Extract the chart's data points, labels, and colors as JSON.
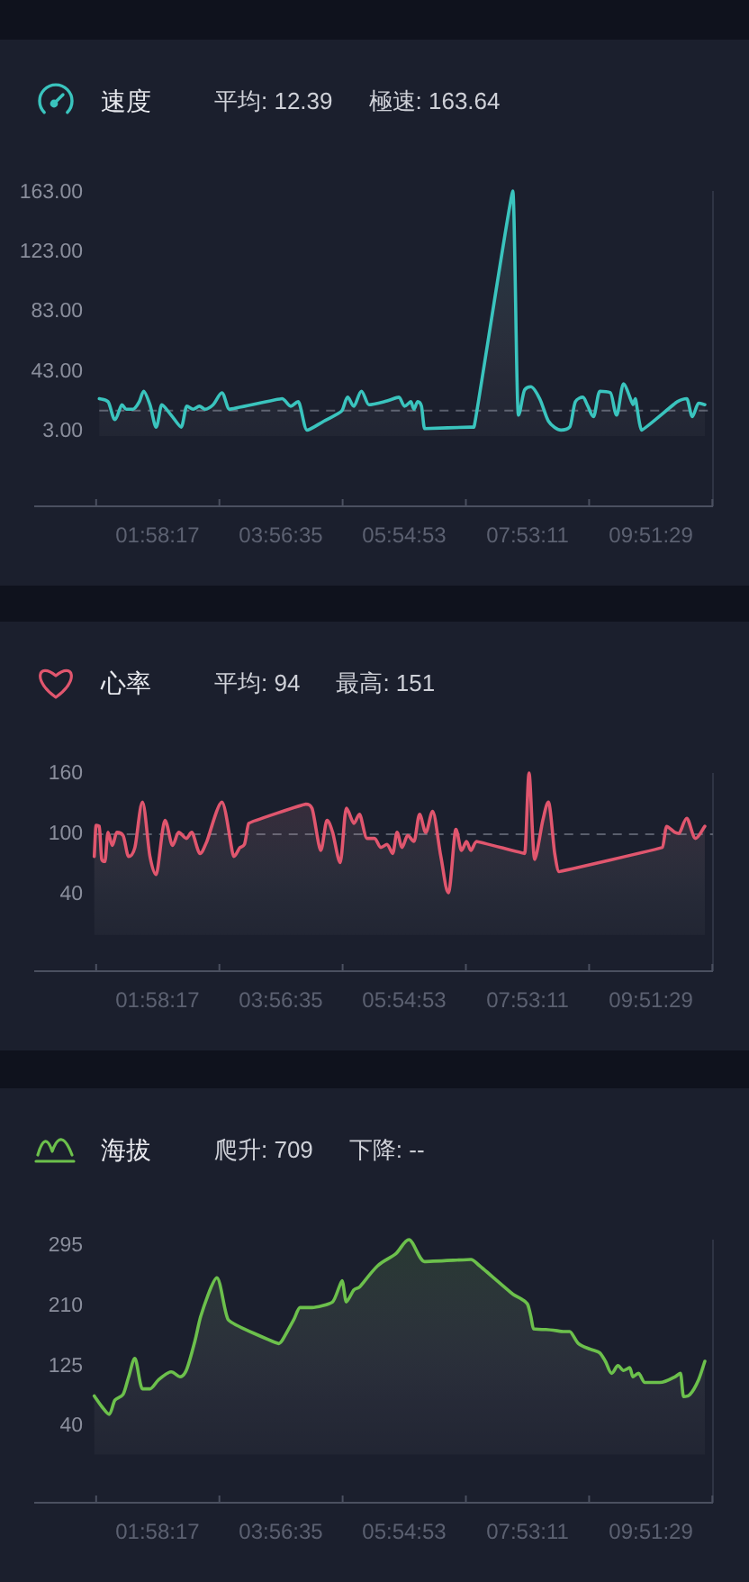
{
  "chart_data": [
    {
      "type": "area",
      "title": "速度",
      "annotations": [
        "平均: 12.39",
        "極速: 163.64"
      ],
      "color": "#3ac4be",
      "x": [
        1.04,
        1.18,
        1.29,
        1.4,
        1.47,
        1.58,
        1.68,
        1.75,
        1.85,
        1.95,
        2.04,
        2.19,
        2.35,
        2.44,
        2.54,
        2.64,
        2.73,
        2.86,
        3.0,
        3.12,
        3.96,
        4.1,
        4.22,
        4.36,
        4.63,
        4.92,
        5.01,
        5.11,
        5.23,
        5.35,
        5.59,
        5.83,
        5.92,
        6.02,
        6.07,
        6.13,
        6.19,
        6.24,
        6.98,
        7.03,
        7.65,
        7.74,
        7.84,
        7.94,
        8.08,
        8.22,
        8.42,
        8.56,
        8.65,
        8.77,
        8.85,
        8.94,
        9.04,
        9.21,
        9.31,
        9.42,
        9.57,
        9.61,
        9.71,
        10.28,
        10.43,
        10.52,
        10.62,
        10.72
      ],
      "values": [
        25,
        23,
        11,
        21,
        18,
        18,
        23,
        30,
        21,
        6,
        21,
        14,
        6,
        20,
        18,
        20,
        18,
        21,
        29,
        18,
        25,
        20,
        23,
        4,
        10,
        17,
        26,
        20,
        30,
        21,
        23,
        26,
        20,
        23,
        18,
        23,
        20,
        5,
        6,
        6,
        164,
        14,
        31,
        33,
        25,
        10,
        4,
        6,
        23,
        26,
        20,
        13,
        30,
        29,
        14,
        35,
        21,
        25,
        4,
        23,
        25,
        13,
        22,
        21
      ],
      "xlim": [
        0,
        10.85
      ],
      "ylim": [
        -47,
        164
      ],
      "xticks": [
        {
          "value": 0.99,
          "label": null
        },
        {
          "value": 1.9714,
          "label": "01:58:17"
        },
        {
          "value": 2.96,
          "label": null
        },
        {
          "value": 3.9431,
          "label": "03:56:35"
        },
        {
          "value": 4.93,
          "label": null
        },
        {
          "value": 5.9147,
          "label": "05:54:53"
        },
        {
          "value": 6.9,
          "label": null
        },
        {
          "value": 7.8864,
          "label": "07:53:11"
        },
        {
          "value": 8.87,
          "label": null
        },
        {
          "value": 9.8581,
          "label": "09:51:29"
        },
        {
          "value": 10.84,
          "label": null
        }
      ],
      "yticks": [
        {
          "value": 3,
          "label": "3.00"
        },
        {
          "value": 43,
          "label": "43.00"
        },
        {
          "value": 83,
          "label": "83.00"
        },
        {
          "value": 123,
          "label": "123.00"
        },
        {
          "value": 163,
          "label": "163.00"
        }
      ],
      "ref_lines": [
        {
          "axis": "y",
          "value": 17,
          "color": "#5a5f6d",
          "line_style": "dashed"
        }
      ]
    },
    {
      "type": "area",
      "title": "心率",
      "annotations": [
        "平均: 94",
        "最高: 151"
      ],
      "color": "#e0566e",
      "x": [
        0.96,
        0.99,
        1.04,
        1.08,
        1.13,
        1.18,
        1.25,
        1.32,
        1.42,
        1.51,
        1.61,
        1.73,
        1.85,
        1.95,
        2.09,
        2.21,
        2.31,
        2.43,
        2.52,
        2.65,
        2.76,
        3.0,
        3.19,
        3.29,
        3.36,
        3.43,
        4.34,
        4.44,
        4.58,
        4.68,
        4.77,
        4.89,
        4.99,
        5.11,
        5.2,
        5.32,
        5.44,
        5.54,
        5.64,
        5.73,
        5.8,
        5.88,
        5.97,
        6.07,
        6.16,
        6.26,
        6.37,
        6.5,
        6.62,
        6.74,
        6.83,
        6.91,
        6.98,
        7.07,
        7.84,
        7.91,
        8.0,
        8.13,
        8.22,
        8.32,
        8.39,
        10.04,
        10.11,
        10.24,
        10.31,
        10.43,
        10.57,
        10.72
      ],
      "values": [
        78,
        109,
        108,
        75,
        73,
        102,
        89,
        102,
        99,
        78,
        87,
        132,
        78,
        60,
        114,
        89,
        102,
        96,
        102,
        81,
        93,
        132,
        78,
        87,
        90,
        111,
        130,
        126,
        84,
        114,
        102,
        72,
        126,
        111,
        120,
        96,
        96,
        87,
        90,
        81,
        102,
        87,
        99,
        93,
        120,
        102,
        123,
        78,
        42,
        105,
        84,
        93,
        84,
        93,
        81,
        161,
        75,
        114,
        132,
        81,
        63,
        87,
        108,
        102,
        101,
        116,
        96,
        108
      ],
      "xlim": [
        0,
        10.85
      ],
      "ylim": [
        -36,
        161
      ],
      "xticks": [
        {
          "value": 0.99,
          "label": null
        },
        {
          "value": 1.9714,
          "label": "01:58:17"
        },
        {
          "value": 2.96,
          "label": null
        },
        {
          "value": 3.9431,
          "label": "03:56:35"
        },
        {
          "value": 4.93,
          "label": null
        },
        {
          "value": 5.9147,
          "label": "05:54:53"
        },
        {
          "value": 6.9,
          "label": null
        },
        {
          "value": 7.8864,
          "label": "07:53:11"
        },
        {
          "value": 8.87,
          "label": null
        },
        {
          "value": 9.8581,
          "label": "09:51:29"
        },
        {
          "value": 10.84,
          "label": null
        }
      ],
      "yticks": [
        40,
        100,
        160
      ],
      "ref_lines": [
        {
          "axis": "y",
          "value": 100,
          "color": "#5a5f6d",
          "line_style": "dashed"
        }
      ]
    },
    {
      "type": "area",
      "title": "海拔",
      "annotations": [
        "爬升: 709",
        "下降: --"
      ],
      "color": "#6cc04c",
      "x": [
        0.96,
        1.08,
        1.2,
        1.29,
        1.42,
        1.51,
        1.61,
        1.73,
        1.85,
        1.99,
        2.19,
        2.33,
        2.43,
        2.57,
        2.66,
        2.92,
        3.1,
        3.91,
        3.96,
        4.15,
        4.25,
        4.44,
        4.77,
        4.92,
        4.99,
        5.11,
        5.2,
        5.49,
        5.78,
        5.99,
        6.24,
        6.98,
        7.12,
        7.65,
        7.79,
        7.89,
        7.94,
        7.98,
        8.18,
        8.46,
        8.56,
        8.7,
        8.89,
        9.04,
        9.13,
        9.23,
        9.33,
        9.42,
        9.52,
        9.57,
        9.66,
        9.76,
        10.0,
        10.24,
        10.33,
        10.38,
        10.48,
        10.62,
        10.72
      ],
      "values": [
        83,
        68,
        57,
        77,
        85,
        110,
        136,
        93,
        93,
        106,
        117,
        110,
        119,
        161,
        195,
        250,
        191,
        157,
        161,
        191,
        208,
        208,
        216,
        246,
        216,
        233,
        237,
        267,
        284,
        304,
        273,
        276,
        267,
        227,
        220,
        212,
        195,
        178,
        177,
        174,
        174,
        157,
        149,
        144,
        132,
        115,
        126,
        119,
        123,
        110,
        115,
        102,
        102,
        110,
        115,
        82,
        85,
        106,
        132
      ],
      "xlim": [
        0,
        10.85
      ],
      "ylim": [
        -68,
        304
      ],
      "xticks": [
        {
          "value": 0.99,
          "label": null
        },
        {
          "value": 1.9714,
          "label": "01:58:17"
        },
        {
          "value": 2.96,
          "label": null
        },
        {
          "value": 3.9431,
          "label": "03:56:35"
        },
        {
          "value": 4.93,
          "label": null
        },
        {
          "value": 5.9147,
          "label": "05:54:53"
        },
        {
          "value": 6.9,
          "label": null
        },
        {
          "value": 7.8864,
          "label": "07:53:11"
        },
        {
          "value": 8.87,
          "label": null
        },
        {
          "value": 9.8581,
          "label": "09:51:29"
        },
        {
          "value": 10.84,
          "label": null
        }
      ],
      "yticks": [
        40,
        125,
        210,
        295
      ]
    }
  ]
}
